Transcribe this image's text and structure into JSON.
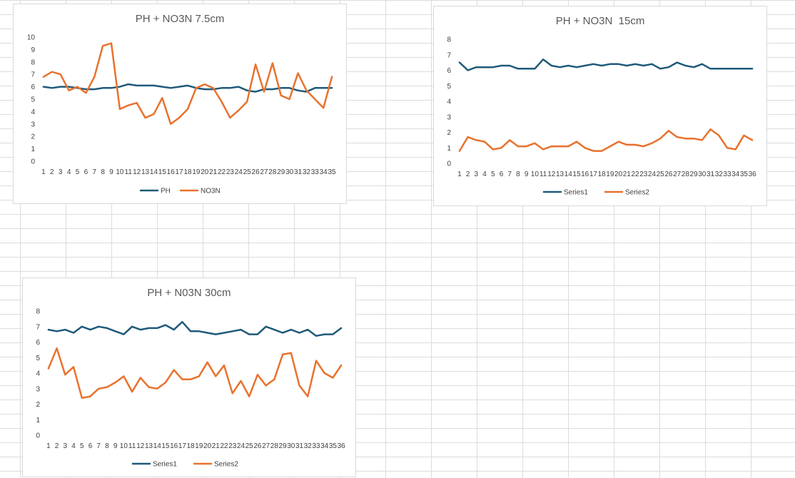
{
  "colors": {
    "series_a": "#1f5a7a",
    "series_b": "#e8722d"
  },
  "chart_data": [
    {
      "type": "line",
      "title": "PH + NO3N 7.5cm",
      "xlabel": "",
      "ylabel": "",
      "ylim": [
        0,
        10
      ],
      "ystep": 1,
      "x": [
        1,
        2,
        3,
        4,
        5,
        6,
        7,
        8,
        9,
        10,
        11,
        12,
        13,
        14,
        15,
        16,
        17,
        18,
        19,
        20,
        21,
        22,
        23,
        24,
        25,
        26,
        27,
        28,
        29,
        30,
        31,
        32,
        33,
        34,
        35
      ],
      "grid": false,
      "legend": "bottom",
      "series": [
        {
          "name": "PH",
          "color": "series_a",
          "values": [
            6.0,
            5.9,
            6.0,
            6.0,
            5.9,
            5.8,
            5.8,
            5.9,
            5.9,
            6.0,
            6.2,
            6.1,
            6.1,
            6.1,
            6.0,
            5.9,
            6.0,
            6.1,
            5.9,
            5.8,
            5.8,
            5.9,
            5.9,
            6.0,
            5.7,
            5.6,
            5.8,
            5.8,
            5.9,
            5.9,
            5.7,
            5.6,
            5.9,
            5.9,
            5.9
          ]
        },
        {
          "name": "NO3N",
          "color": "series_b",
          "values": [
            6.8,
            7.2,
            7.0,
            5.7,
            6.0,
            5.5,
            6.8,
            9.3,
            9.5,
            4.2,
            4.5,
            4.7,
            3.5,
            3.8,
            5.1,
            3.0,
            3.5,
            4.2,
            5.9,
            6.2,
            5.9,
            4.8,
            3.5,
            4.1,
            4.8,
            7.8,
            5.6,
            7.9,
            5.3,
            5.0,
            7.1,
            5.7,
            5.0,
            4.3,
            6.8
          ]
        }
      ]
    },
    {
      "type": "line",
      "title": "PH + NO3N  15cm",
      "xlabel": "",
      "ylabel": "",
      "ylim": [
        0,
        8
      ],
      "ystep": 1,
      "x": [
        1,
        2,
        3,
        4,
        5,
        6,
        7,
        8,
        9,
        10,
        11,
        12,
        13,
        14,
        15,
        16,
        17,
        18,
        19,
        20,
        21,
        22,
        23,
        24,
        25,
        26,
        27,
        28,
        29,
        30,
        31,
        32,
        33,
        34,
        35,
        36
      ],
      "grid": false,
      "legend": "bottom",
      "series": [
        {
          "name": "Series1",
          "color": "series_a",
          "values": [
            6.5,
            6.0,
            6.2,
            6.2,
            6.2,
            6.3,
            6.3,
            6.1,
            6.1,
            6.1,
            6.7,
            6.3,
            6.2,
            6.3,
            6.2,
            6.3,
            6.4,
            6.3,
            6.4,
            6.4,
            6.3,
            6.4,
            6.3,
            6.4,
            6.1,
            6.2,
            6.5,
            6.3,
            6.2,
            6.4,
            6.1,
            6.1,
            6.1,
            6.1,
            6.1,
            6.1
          ]
        },
        {
          "name": "Series2",
          "color": "series_b",
          "values": [
            0.8,
            1.7,
            1.5,
            1.4,
            0.9,
            1.0,
            1.5,
            1.1,
            1.1,
            1.3,
            0.9,
            1.1,
            1.1,
            1.1,
            1.4,
            1.0,
            0.8,
            0.8,
            1.1,
            1.4,
            1.2,
            1.2,
            1.1,
            1.3,
            1.6,
            2.1,
            1.7,
            1.6,
            1.6,
            1.5,
            2.2,
            1.8,
            1.0,
            0.9,
            1.8,
            1.5
          ]
        }
      ]
    },
    {
      "type": "line",
      "title": "PH + N03N 30cm",
      "xlabel": "",
      "ylabel": "",
      "ylim": [
        0,
        8
      ],
      "ystep": 1,
      "x": [
        1,
        2,
        3,
        4,
        5,
        6,
        7,
        8,
        9,
        10,
        11,
        12,
        13,
        14,
        15,
        16,
        17,
        18,
        19,
        20,
        21,
        22,
        23,
        24,
        25,
        26,
        27,
        28,
        29,
        30,
        31,
        32,
        33,
        34,
        35,
        36
      ],
      "grid": false,
      "legend": "bottom",
      "series": [
        {
          "name": "Series1",
          "color": "series_a",
          "values": [
            6.8,
            6.7,
            6.8,
            6.6,
            7.0,
            6.8,
            7.0,
            6.9,
            6.7,
            6.5,
            7.0,
            6.8,
            6.9,
            6.9,
            7.1,
            6.8,
            7.3,
            6.7,
            6.7,
            6.6,
            6.5,
            6.6,
            6.7,
            6.8,
            6.5,
            6.5,
            7.0,
            6.8,
            6.6,
            6.8,
            6.6,
            6.8,
            6.4,
            6.5,
            6.5,
            6.9
          ]
        },
        {
          "name": "Series2",
          "color": "series_b",
          "values": [
            4.3,
            5.6,
            3.9,
            4.4,
            2.4,
            2.5,
            3.0,
            3.1,
            3.4,
            3.8,
            2.8,
            3.7,
            3.1,
            3.0,
            3.4,
            4.2,
            3.6,
            3.6,
            3.8,
            4.7,
            3.8,
            4.5,
            2.7,
            3.5,
            2.5,
            3.9,
            3.2,
            3.6,
            5.2,
            5.3,
            3.2,
            2.5,
            4.8,
            4.0,
            3.7,
            4.5
          ]
        }
      ]
    }
  ]
}
